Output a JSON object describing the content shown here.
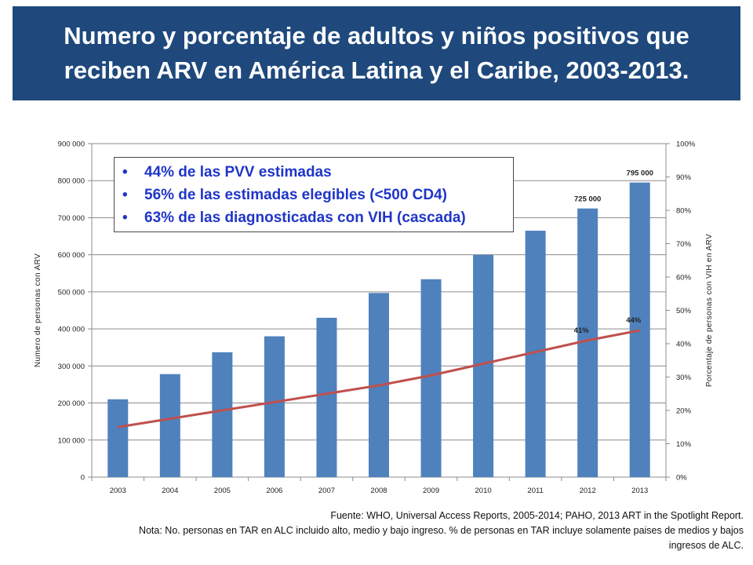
{
  "title": "Numero y porcentaje de adultos y niños positivos que reciben ARV en América Latina y el Caribe, 2003-2013.",
  "bullets": [
    "44% de las PVV estimadas",
    "56% de las estimadas elegibles (<500 CD4)",
    "63% de las diagnosticadas con VIH (cascada)"
  ],
  "footer": {
    "source": "Fuente: WHO, Universal Access Reports, 2005-2014; PAHO, 2013 ART in the Spotlight Report.",
    "note_line1": "Nota: No. personas en TAR en ALC incluido alto, medio y bajo ingreso.  % de personas en TAR incluye solamente  paises de medios y bajos",
    "note_line2": "ingresos de ALC."
  },
  "colors": {
    "title_bg": "#1f497d",
    "bars": "#4f81bd",
    "line": "#c0504d",
    "bullet_text": "#1f35c8"
  },
  "chart_data": {
    "type": "bar",
    "categories": [
      "2003",
      "2004",
      "2005",
      "2006",
      "2007",
      "2008",
      "2009",
      "2010",
      "2011",
      "2012",
      "2013"
    ],
    "series": [
      {
        "kind": "bar",
        "axis": "left",
        "values": [
          210000,
          278000,
          337000,
          380000,
          430000,
          497000,
          534000,
          600000,
          665000,
          725000,
          795000
        ]
      },
      {
        "kind": "line",
        "axis": "right",
        "values": [
          15,
          17.5,
          20,
          22.5,
          25,
          27.5,
          30.5,
          34,
          37.5,
          41,
          44
        ]
      }
    ],
    "data_labels": [
      {
        "series": 0,
        "index": 9,
        "text": "725 000"
      },
      {
        "series": 0,
        "index": 10,
        "text": "795 000"
      },
      {
        "series": 1,
        "index": 9,
        "text": "41%"
      },
      {
        "series": 1,
        "index": 10,
        "text": "44%"
      }
    ],
    "ylabel": "Numero de personas con ARV",
    "y2label": "Porcentaje de personas con VIH en ARV",
    "ylim": [
      0,
      900000
    ],
    "y2lim": [
      0,
      100
    ],
    "yticks": [
      "0",
      "100 000",
      "200 000",
      "300 000",
      "400 000",
      "500 000",
      "600 000",
      "700 000",
      "800 000",
      "900 000"
    ],
    "y2ticks": [
      "0%",
      "10%",
      "20%",
      "30%",
      "40%",
      "50%",
      "60%",
      "70%",
      "80%",
      "90%",
      "100%"
    ],
    "grid": "horizontal"
  }
}
